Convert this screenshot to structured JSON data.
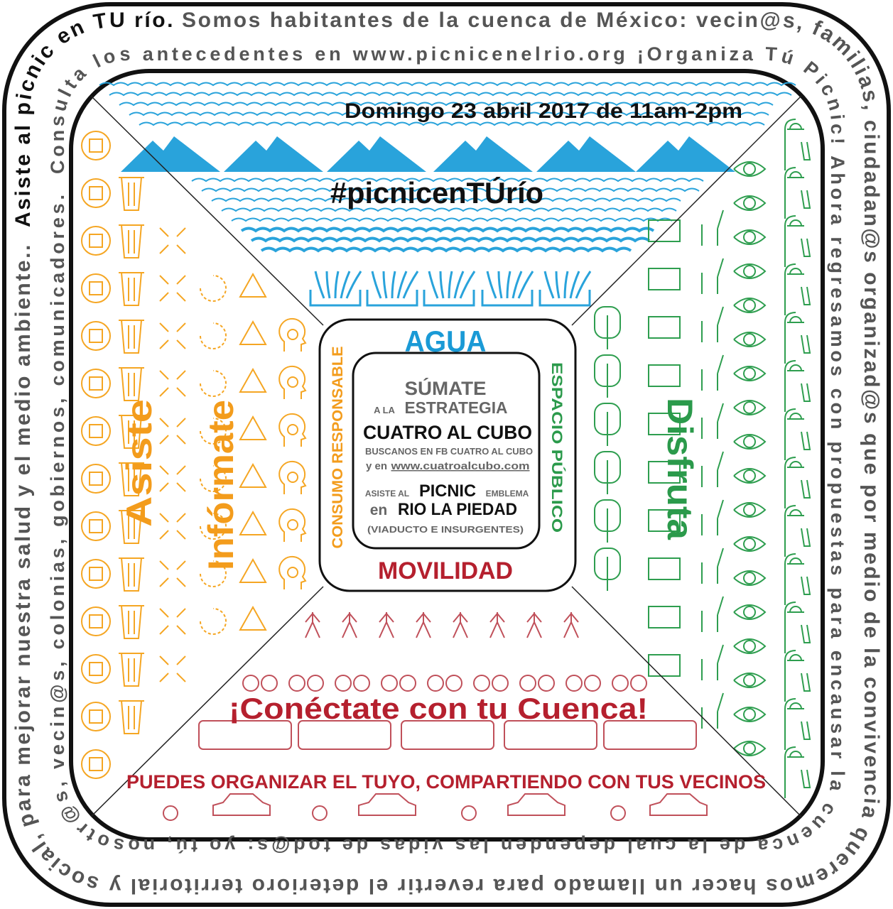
{
  "ring": {
    "outer_lead": "Asiste al picnic en TU río.",
    "outer_rest": "Somos habitantes de la cuenca de México: vecin@s, familias, ciudadan@s organizad@s que por medio de la convivencia queremos hacer un llamado para revertir el deterioro territorial y social, para mejorar nuestra salud y el medio ambiente..",
    "inner": "Consulta los antecedentes en www.picnicenelrio.org ¡Organiza Tú Picnic! Ahora regresamos con propuestas para encausar la cuenca de la cual dependen las vidas de tod@s: yo tú, nosotr@s, vecin@s, colonias, gobiernos, comunicadores."
  },
  "top": {
    "date": "Domingo 23 abril 2017 de 11am-2pm",
    "hashtag": "#picnicenTÚrío",
    "theme": "AGUA"
  },
  "left": {
    "theme": "CONSUMO RESPONSABLE",
    "word1": "Asiste",
    "word2": "Infórmate"
  },
  "right": {
    "theme": "ESPACIO PÚBLICO",
    "word": "Disfruta"
  },
  "bottom": {
    "theme": "MOVILIDAD",
    "slogan": "¡Conéctate con tu Cuenca!",
    "call": "PUEDES ORGANIZAR EL TUYO, COMPARTIENDO CON TUS VECINOS"
  },
  "center": {
    "join": "SÚMATE",
    "to_the": "A LA",
    "strategy": "ESTRATEGIA",
    "name": "CUATRO AL CUBO",
    "fb": "BUSCANOS EN FB CUATRO AL CUBO",
    "and_at": "y en",
    "url": "www.cuatroalcubo.com",
    "attend": "ASISTE AL",
    "picnic": "PICNIC",
    "emblem": "EMBLEMA",
    "in": "en",
    "place": "RIO LA PIEDAD",
    "place_note": "(VIADUCTO E INSURGENTES)"
  }
}
